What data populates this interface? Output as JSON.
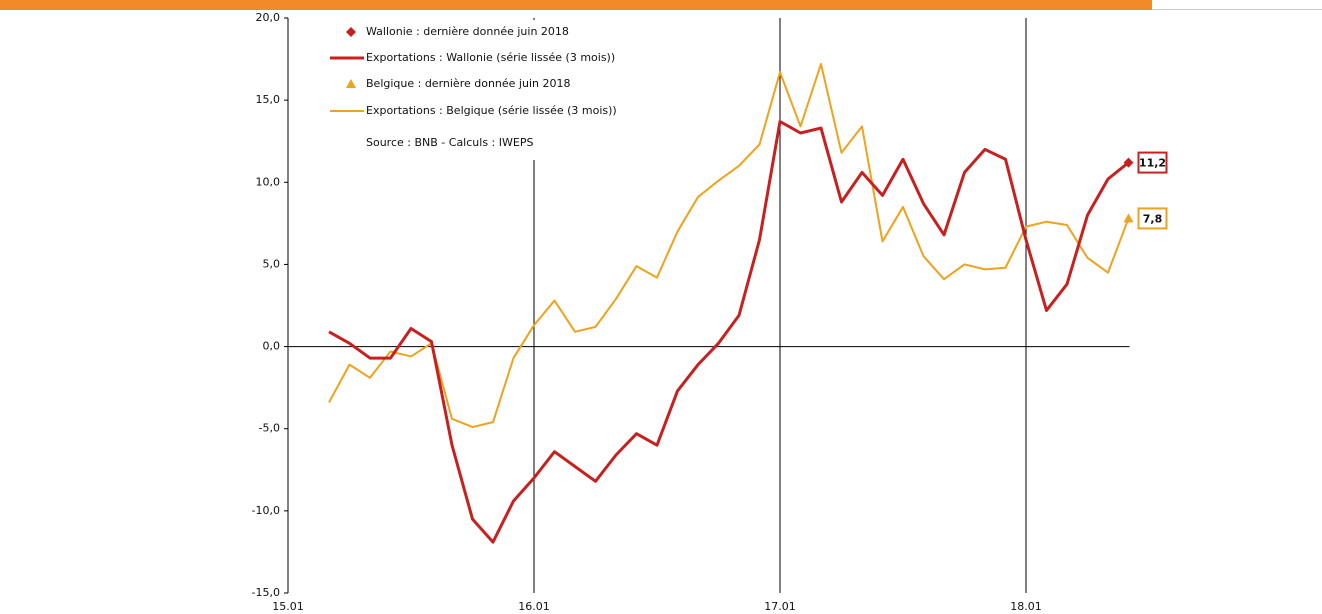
{
  "chart_data": {
    "type": "line",
    "categories": [
      "15.01",
      null,
      null,
      null,
      null,
      null,
      null,
      null,
      null,
      null,
      null,
      null,
      "16.01",
      null,
      null,
      null,
      null,
      null,
      null,
      null,
      null,
      null,
      null,
      null,
      "17.01",
      null,
      null,
      null,
      null,
      null,
      null,
      null,
      null,
      null,
      null,
      null,
      "18.01",
      null,
      null,
      null,
      null,
      null
    ],
    "series": [
      {
        "name": "Exportations : Wallonie (série lissée (3 mois))",
        "color": "#c8201f",
        "values": [
          null,
          null,
          0.9,
          0.2,
          -0.7,
          -0.7,
          1.1,
          0.3,
          -6.0,
          -10.5,
          -11.9,
          -9.4,
          -8.0,
          -6.4,
          -7.3,
          -8.2,
          -6.6,
          -5.3,
          -6.0,
          -2.7,
          -1.1,
          0.2,
          1.9,
          6.5,
          13.7,
          13.0,
          13.3,
          8.8,
          10.6,
          9.2,
          11.4,
          8.7,
          6.8,
          10.6,
          12.0,
          11.4,
          6.5,
          2.2,
          3.8,
          8.0,
          10.2,
          11.2
        ],
        "end_marker": {
          "name": "Wallonie : dernière donnée juin 2018",
          "shape": "diamond",
          "label": "11,2"
        }
      },
      {
        "name": "Exportations : Belgique (série lissée (3 mois))",
        "color": "#f0a21d",
        "values": [
          null,
          null,
          -3.4,
          -1.1,
          -1.9,
          -0.3,
          -0.6,
          0.2,
          -4.4,
          -4.9,
          -4.6,
          -0.7,
          1.3,
          2.8,
          0.9,
          1.2,
          2.9,
          4.9,
          4.2,
          7.0,
          9.1,
          10.1,
          11.0,
          12.3,
          16.7,
          13.4,
          17.2,
          11.8,
          13.4,
          6.4,
          8.5,
          5.5,
          4.1,
          5.0,
          4.7,
          4.8,
          7.3,
          7.6,
          7.4,
          5.4,
          4.5,
          7.8
        ],
        "end_marker": {
          "name": "Belgique : dernière donnée juin 2018",
          "shape": "triangle",
          "label": "7,8"
        }
      }
    ],
    "note": "Source : BNB - Calculs : IWEPS",
    "ylim": [
      -15,
      20
    ],
    "yticks": [
      {
        "value": -15,
        "label": "-15,0"
      },
      {
        "value": -10,
        "label": "-10,0"
      },
      {
        "value": -5,
        "label": "-5,0"
      },
      {
        "value": 0,
        "label": "0,0"
      },
      {
        "value": 5,
        "label": "5,0"
      },
      {
        "value": 10,
        "label": "10,0"
      },
      {
        "value": 15,
        "label": "15,0"
      },
      {
        "value": 20,
        "label": "20,0"
      }
    ],
    "vertical_grid": true
  }
}
